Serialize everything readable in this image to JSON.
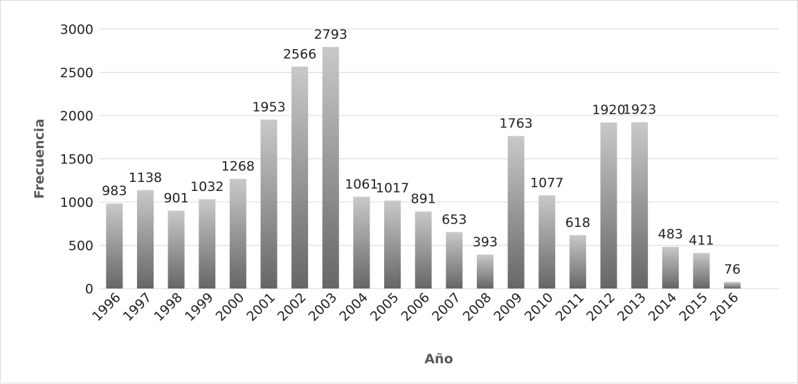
{
  "chart_data": {
    "type": "bar",
    "title": "",
    "xlabel": "Año",
    "ylabel": "Frecuencia",
    "categories": [
      "1996",
      "1997",
      "1998",
      "1999",
      "2000",
      "2001",
      "2002",
      "2003",
      "2004",
      "2005",
      "2006",
      "2007",
      "2008",
      "2009",
      "2010",
      "2011",
      "2012",
      "2013",
      "2014",
      "2015",
      "2016"
    ],
    "values": [
      983,
      1138,
      901,
      1032,
      1268,
      1953,
      2566,
      2793,
      1061,
      1017,
      891,
      653,
      393,
      1763,
      1077,
      618,
      1920,
      1923,
      483,
      411,
      76
    ],
    "ylim": [
      0,
      3000
    ],
    "yticks": [
      0,
      500,
      1000,
      1500,
      2000,
      2500,
      3000
    ],
    "grid": true,
    "legend": "none",
    "data_labels": true,
    "bar_gradient": {
      "top": "#c9c9c9",
      "bottom": "#666666"
    }
  }
}
